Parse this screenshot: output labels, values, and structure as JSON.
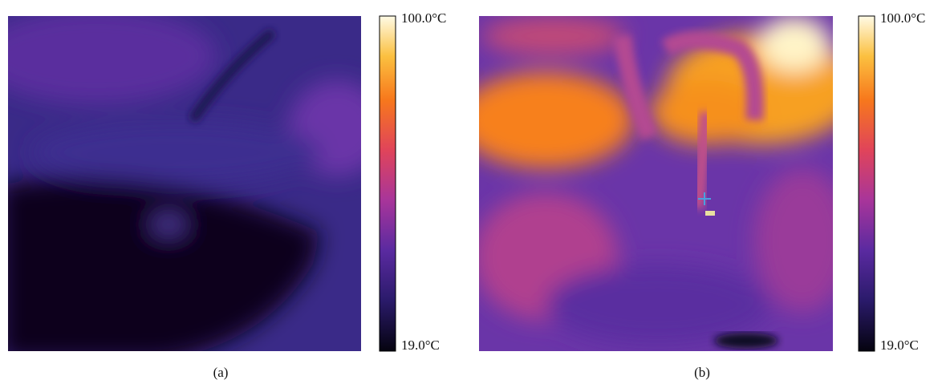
{
  "panels": [
    {
      "label": "(a)",
      "colorbar": {
        "max_label": "100.0°C",
        "min_label": "19.0°C"
      }
    },
    {
      "label": "(b)",
      "colorbar": {
        "max_label": "100.0°C",
        "min_label": "19.0°C"
      }
    }
  ]
}
